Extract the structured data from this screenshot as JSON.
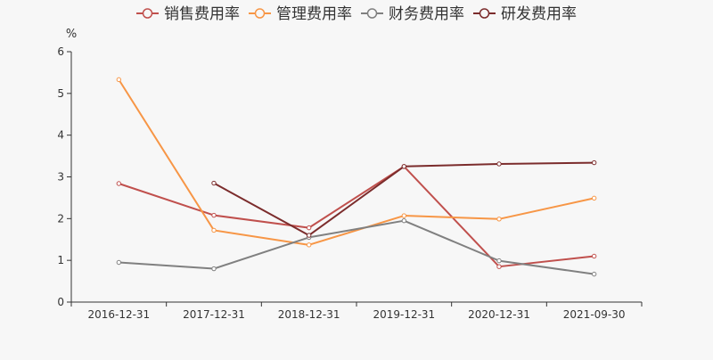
{
  "chart_data": {
    "type": "line",
    "categories": [
      "2016-12-31",
      "2017-12-31",
      "2018-12-31",
      "2019-12-31",
      "2020-12-31",
      "2021-09-30"
    ],
    "ylabel": "%",
    "ylim": [
      0,
      6
    ],
    "yticks": [
      0,
      1,
      2,
      3,
      4,
      5,
      6
    ],
    "grid": false,
    "legend_position": "top",
    "series": [
      {
        "name": "销售费用率",
        "color": "#c0504d",
        "values": [
          2.84,
          2.08,
          1.78,
          3.25,
          0.85,
          1.1
        ]
      },
      {
        "name": "管理费用率",
        "color": "#f79646",
        "values": [
          5.33,
          1.72,
          1.37,
          2.07,
          1.99,
          2.49
        ]
      },
      {
        "name": "财务费用率",
        "color": "#808080",
        "values": [
          0.95,
          0.8,
          1.55,
          1.95,
          0.99,
          0.67
        ]
      },
      {
        "name": "研发费用率",
        "color": "#7b2c2c",
        "values": [
          null,
          2.85,
          1.6,
          3.25,
          3.31,
          3.34
        ]
      }
    ]
  }
}
